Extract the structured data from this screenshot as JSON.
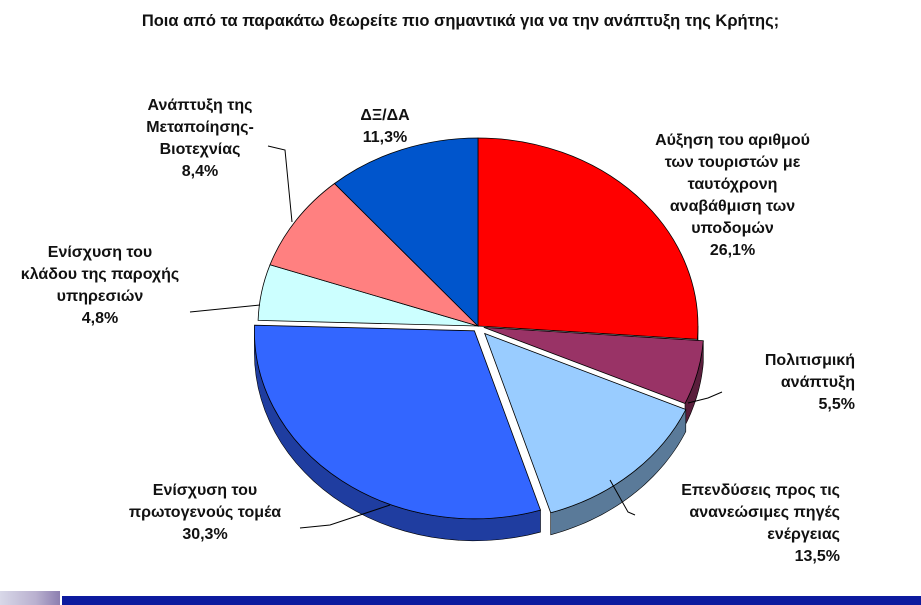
{
  "chart_data": {
    "type": "pie",
    "title": "Ποια από τα παρακάτω θεωρείτε πιο σημαντικά για να την ανάπτυξη της Κρήτης;",
    "slices": [
      {
        "label": "Αύξηση του αριθμού των τουριστών με ταυτόχρονη αναβάθμιση των υποδομών",
        "value": 26.1,
        "value_label": "26,1%",
        "color": "#ff0000",
        "side_color": "#a00000"
      },
      {
        "label": "Πολιτισμική ανάπτυξη",
        "value": 5.5,
        "value_label": "5,5%",
        "color": "#993366",
        "side_color": "#5a1e3c"
      },
      {
        "label": "Επενδύσεις προς τις ανανεώσιμες πηγές ενέργειας",
        "value": 13.5,
        "value_label": "13,5%",
        "color": "#99ccff",
        "side_color": "#5a7a99"
      },
      {
        "label": "Ενίσχυση του πρωτογενούς τομέα",
        "value": 30.3,
        "value_label": "30,3%",
        "color": "#3366ff",
        "side_color": "#1f3da0"
      },
      {
        "label": "Ενίσχυση του κλάδου της παροχής υπηρεσιών",
        "value": 4.8,
        "value_label": "4,8%",
        "color": "#ccffff",
        "side_color": "#7fa0a0"
      },
      {
        "label": "Ανάπτυξη της Μεταποίησης-Βιοτεχνίας",
        "value": 8.4,
        "value_label": "8,4%",
        "color": "#ff8080",
        "side_color": "#a04c4c"
      },
      {
        "label": "ΔΞ/ΔΑ",
        "value": 11.3,
        "value_label": "11,3%",
        "color": "#0055cc",
        "side_color": "#003580"
      }
    ],
    "legend": "none"
  }
}
